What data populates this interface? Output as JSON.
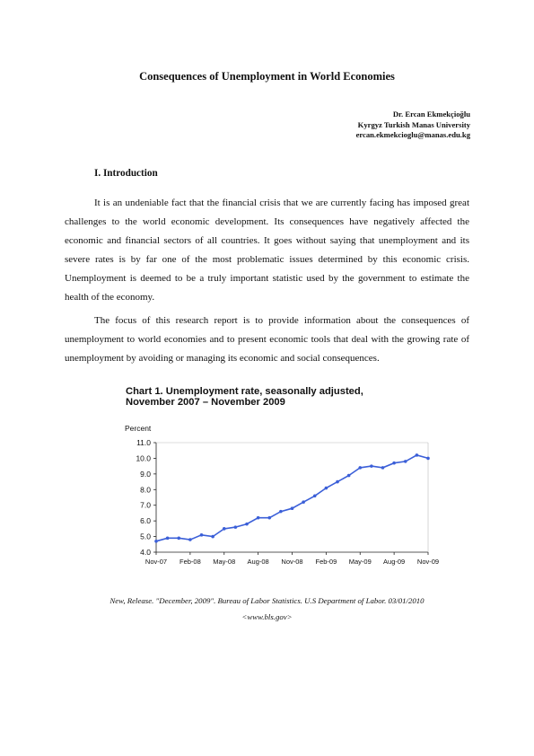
{
  "title": "Consequences of Unemployment in World Economies",
  "author": {
    "name": "Dr. Ercan Ekmekçioğlu",
    "affiliation": "Kyrgyz Turkish Manas University",
    "email": "ercan.ekmekcioglu@manas.edu.kg"
  },
  "section": {
    "heading": "I. Introduction",
    "paragraphs": [
      "It is an undeniable fact that the financial crisis that we are currently facing has imposed great challenges to the world economic development. Its consequences have negatively affected the economic and financial sectors of all countries. It goes without saying that unemployment and its severe rates is by far one of the most problematic issues determined by this economic crisis. Unemployment is deemed to be a truly important statistic used by the government to estimate the health of the economy.",
      "The focus of this research report is to provide information about the consequences of unemployment to world economies and to present economic tools that deal with the growing rate of unemployment by avoiding or managing its economic and social consequences."
    ]
  },
  "chart_data": {
    "type": "line",
    "title_line1": "Chart 1. Unemployment rate, seasonally adjusted,",
    "title_line2": "November 2007 – November 2009",
    "ylabel": "Percent",
    "ylim": [
      4.0,
      11.0
    ],
    "yticks": [
      "4.0",
      "5.0",
      "6.0",
      "7.0",
      "8.0",
      "9.0",
      "10.0",
      "11.0"
    ],
    "xtick_labels": [
      "Nov-07",
      "Feb-08",
      "May-08",
      "Aug-08",
      "Nov-08",
      "Feb-09",
      "May-09",
      "Aug-09",
      "Nov-09"
    ],
    "x": [
      "Nov-07",
      "Dec-07",
      "Jan-08",
      "Feb-08",
      "Mar-08",
      "Apr-08",
      "May-08",
      "Jun-08",
      "Jul-08",
      "Aug-08",
      "Sep-08",
      "Oct-08",
      "Nov-08",
      "Dec-08",
      "Jan-09",
      "Feb-09",
      "Mar-09",
      "Apr-09",
      "May-09",
      "Jun-09",
      "Jul-09",
      "Aug-09",
      "Sep-09",
      "Oct-09",
      "Nov-09"
    ],
    "values": [
      4.7,
      4.9,
      4.9,
      4.8,
      5.1,
      5.0,
      5.5,
      5.6,
      5.8,
      6.2,
      6.2,
      6.6,
      6.8,
      7.2,
      7.6,
      8.1,
      8.5,
      8.9,
      9.4,
      9.5,
      9.4,
      9.7,
      9.8,
      10.2,
      10.0
    ],
    "grid": false,
    "line_color": "#3b5fd8"
  },
  "source": {
    "line1": "New, Release. \"December, 2009\". Bureau of Labor Statistics. U.S Department of Labor. 03/01/2010",
    "line2": "<www.bls.gov>"
  }
}
